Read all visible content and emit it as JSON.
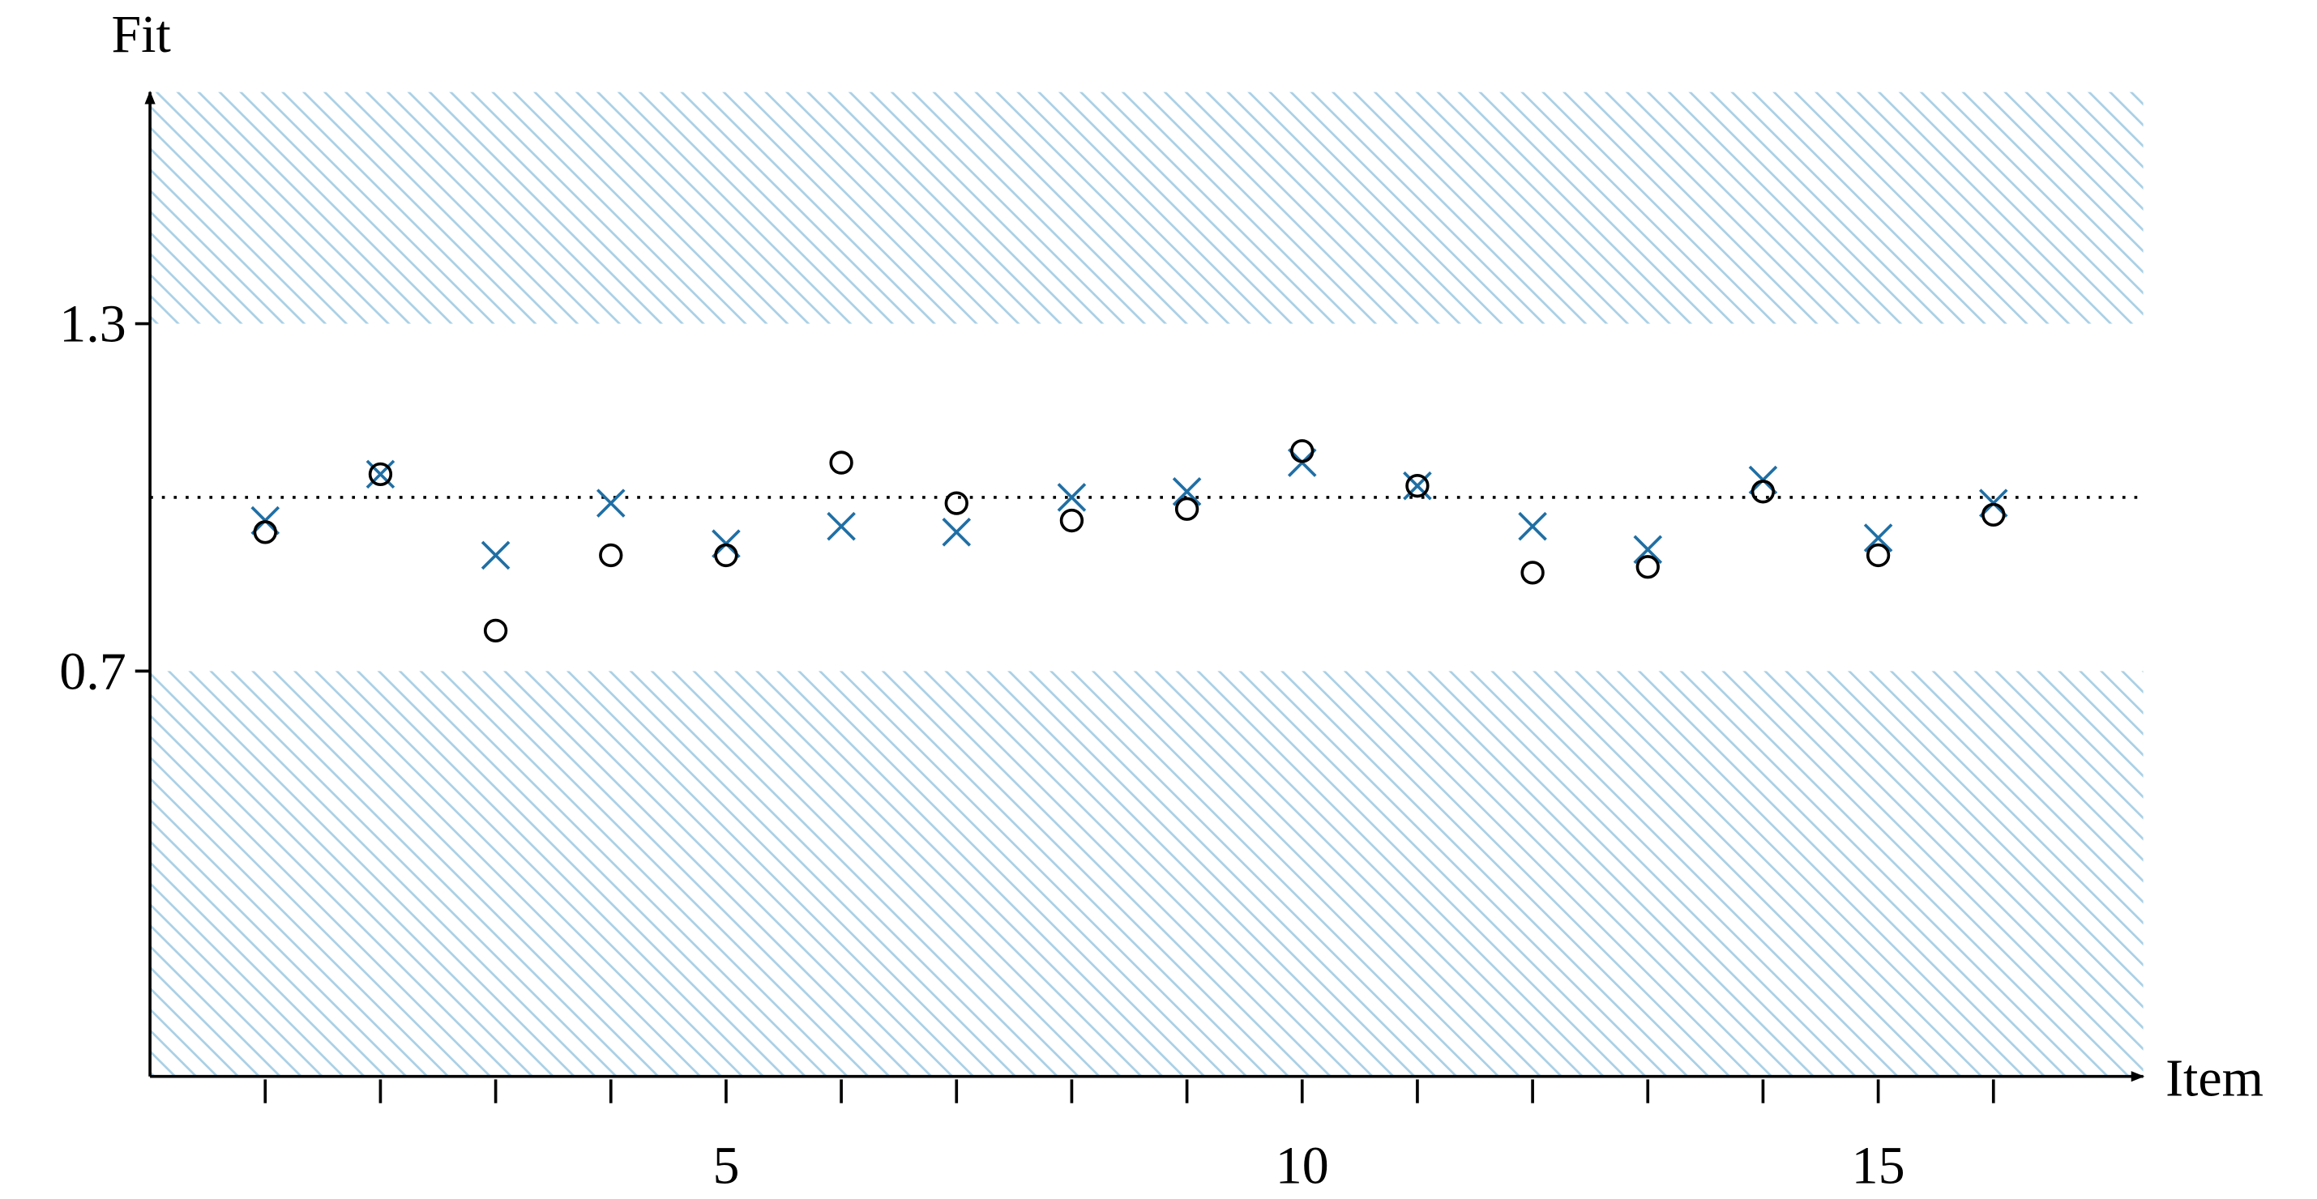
{
  "chart_data": {
    "type": "scatter",
    "ylabel": "Fit",
    "xlabel": "Item",
    "x": [
      1,
      2,
      3,
      4,
      5,
      6,
      7,
      8,
      9,
      10,
      11,
      12,
      13,
      14,
      15,
      16
    ],
    "series": [
      {
        "marker": "cross",
        "color": "#1f6fa5",
        "values": [
          0.96,
          1.04,
          0.9,
          0.99,
          0.92,
          0.95,
          0.94,
          1.0,
          1.01,
          1.06,
          1.02,
          0.95,
          0.91,
          1.03,
          0.93,
          0.99
        ]
      },
      {
        "marker": "circle",
        "color": "#000000",
        "values": [
          0.94,
          1.04,
          0.77,
          0.9,
          0.9,
          1.06,
          0.99,
          0.96,
          0.98,
          1.08,
          1.02,
          0.87,
          0.88,
          1.01,
          0.9,
          0.97
        ]
      }
    ],
    "xlim": [
      0,
      17.3
    ],
    "ylim": [
      0,
      1.7
    ],
    "xticks": [
      5,
      10,
      15
    ],
    "yticks": [
      0.7,
      1.3
    ],
    "bands": [
      [
        0,
        0.7
      ],
      [
        1.3,
        1.7
      ]
    ],
    "band_color": "#a9d0e6",
    "reference_line": 1.0
  }
}
